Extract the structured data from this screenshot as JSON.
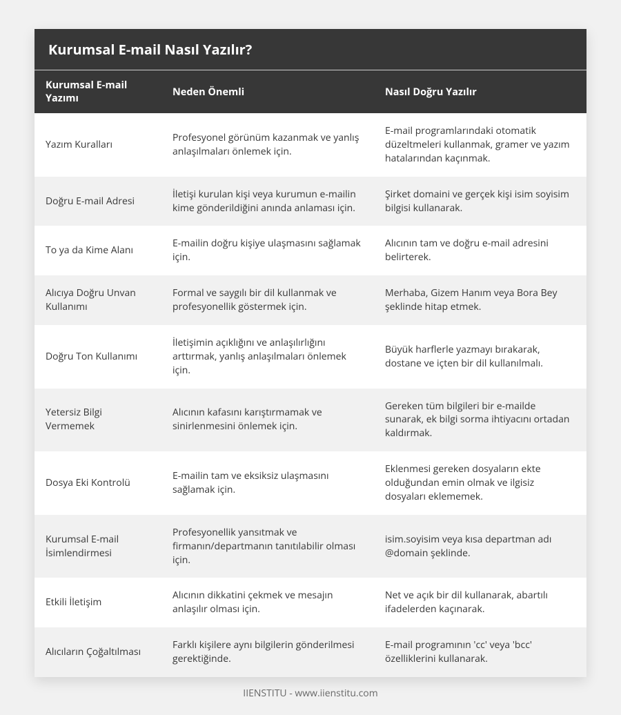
{
  "title": "Kurumsal E-mail Nasıl Yazılır?",
  "columns": [
    "Kurumsal E-mail Yazımı",
    "Neden Önemli",
    "Nasıl Doğru Yazılır"
  ],
  "rows": [
    [
      "Yazım Kuralları",
      "Profesyonel görünüm kazanmak ve yanlış anlaşılmaları önlemek için.",
      "E-mail programlarındaki otomatik düzeltmeleri kullanmak, gramer ve yazım hatalarından kaçınmak."
    ],
    [
      "Doğru E-mail Adresi",
      "İletişi kurulan kişi veya kurumun e-mailin kime gönderildiğini anında anlaması için.",
      "Şirket domaini ve gerçek kişi isim soyisim bilgisi kullanarak."
    ],
    [
      "To ya da Kime Alanı",
      "E-mailin doğru kişiye ulaşmasını sağlamak için.",
      "Alıcının tam ve doğru e-mail adresini belirterek."
    ],
    [
      "Alıcıya Doğru Unvan Kullanımı",
      "Formal ve saygılı bir dil kullanmak ve profesyonellik göstermek için.",
      "Merhaba, Gizem Hanım veya Bora Bey şeklinde hitap etmek."
    ],
    [
      "Doğru Ton Kullanımı",
      "İletişimin açıklığını ve anlaşılırlığını arttırmak, yanlış anlaşılmaları önlemek için.",
      "Büyük harflerle yazmayı bırakarak, dostane ve içten bir dil kullanılmalı."
    ],
    [
      "Yetersiz Bilgi Vermemek",
      "Alıcının kafasını karıştırmamak ve sinirlenmesini önlemek için.",
      "Gereken tüm bilgileri bir e-mailde sunarak, ek bilgi sorma ihtiyacını ortadan kaldırmak."
    ],
    [
      "Dosya Eki Kontrolü",
      "E-mailin tam ve eksiksiz ulaşmasını sağlamak için.",
      "Eklenmesi gereken dosyaların ekte olduğundan emin olmak ve ilgisiz dosyaları eklememek."
    ],
    [
      "Kurumsal E-mail İsimlendirmesi",
      "Profesyonellik yansıtmak ve firmanın/departmanın tanıtılabilir olması için.",
      "isim.soyisim veya kısa departman adı @domain şeklinde."
    ],
    [
      "Etkili İletişim",
      "Alıcının dikkatini çekmek ve mesajın anlaşılır olması için.",
      "Net ve açık bir dil kullanarak, abartılı ifadelerden kaçınarak."
    ],
    [
      "Alıcıların Çoğaltılması",
      "Farklı kişilere aynı bilgilerin gönderilmesi gerektiğinde.",
      "E-mail programının 'cc' veya 'bcc' özelliklerini kullanarak."
    ]
  ],
  "footer": "IIENSTITU - www.iienstitu.com",
  "styling": {
    "type": "table",
    "page_background": "#f1f1f1",
    "card_background": "#ffffff",
    "header_background": "#373737",
    "header_text_color": "#ffffff",
    "row_odd_background": "#ffffff",
    "row_even_background": "#f1f1f1",
    "body_text_color": "#373737",
    "footer_text_color": "#676767",
    "title_fontsize": 20,
    "header_fontsize": 14.5,
    "body_fontsize": 14,
    "footer_fontsize": 14,
    "column_widths_pct": [
      23,
      38.5,
      38.5
    ],
    "font_family": "Open Sans / Segoe UI / Arial",
    "card_shadow": "0 6px 18px rgba(0,0,0,0.12)"
  }
}
